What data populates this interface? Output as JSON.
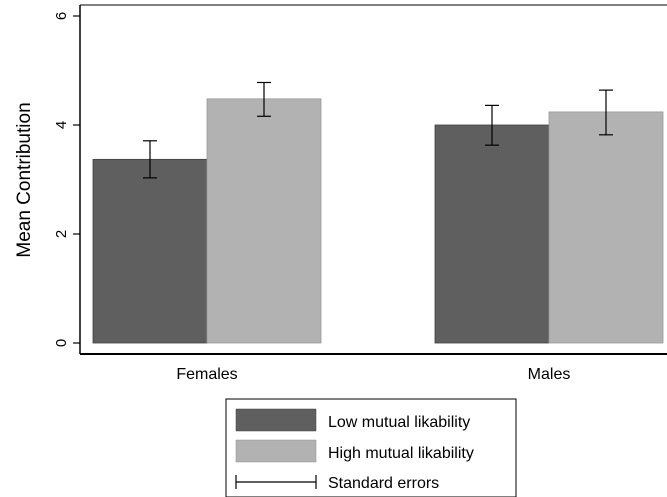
{
  "chart_data": {
    "type": "bar",
    "ylabel": "Mean Contribution",
    "ylim": [
      0,
      6
    ],
    "yticks": [
      "0",
      "2",
      "4",
      "6"
    ],
    "categories": [
      "Females",
      "Males"
    ],
    "series": [
      {
        "name": "Low mutual likability",
        "color": "#5f5f5f",
        "values": [
          3.37,
          4.0
        ],
        "err_low": [
          3.03,
          3.63
        ],
        "err_high": [
          3.71,
          4.36
        ]
      },
      {
        "name": "High mutual likability",
        "color": "#b2b2b2",
        "values": [
          4.48,
          4.24
        ],
        "err_low": [
          4.16,
          3.82
        ],
        "err_high": [
          4.78,
          4.64
        ]
      }
    ],
    "legend": {
      "position": "bottom",
      "error_label": "Standard errors"
    },
    "grid": false
  }
}
